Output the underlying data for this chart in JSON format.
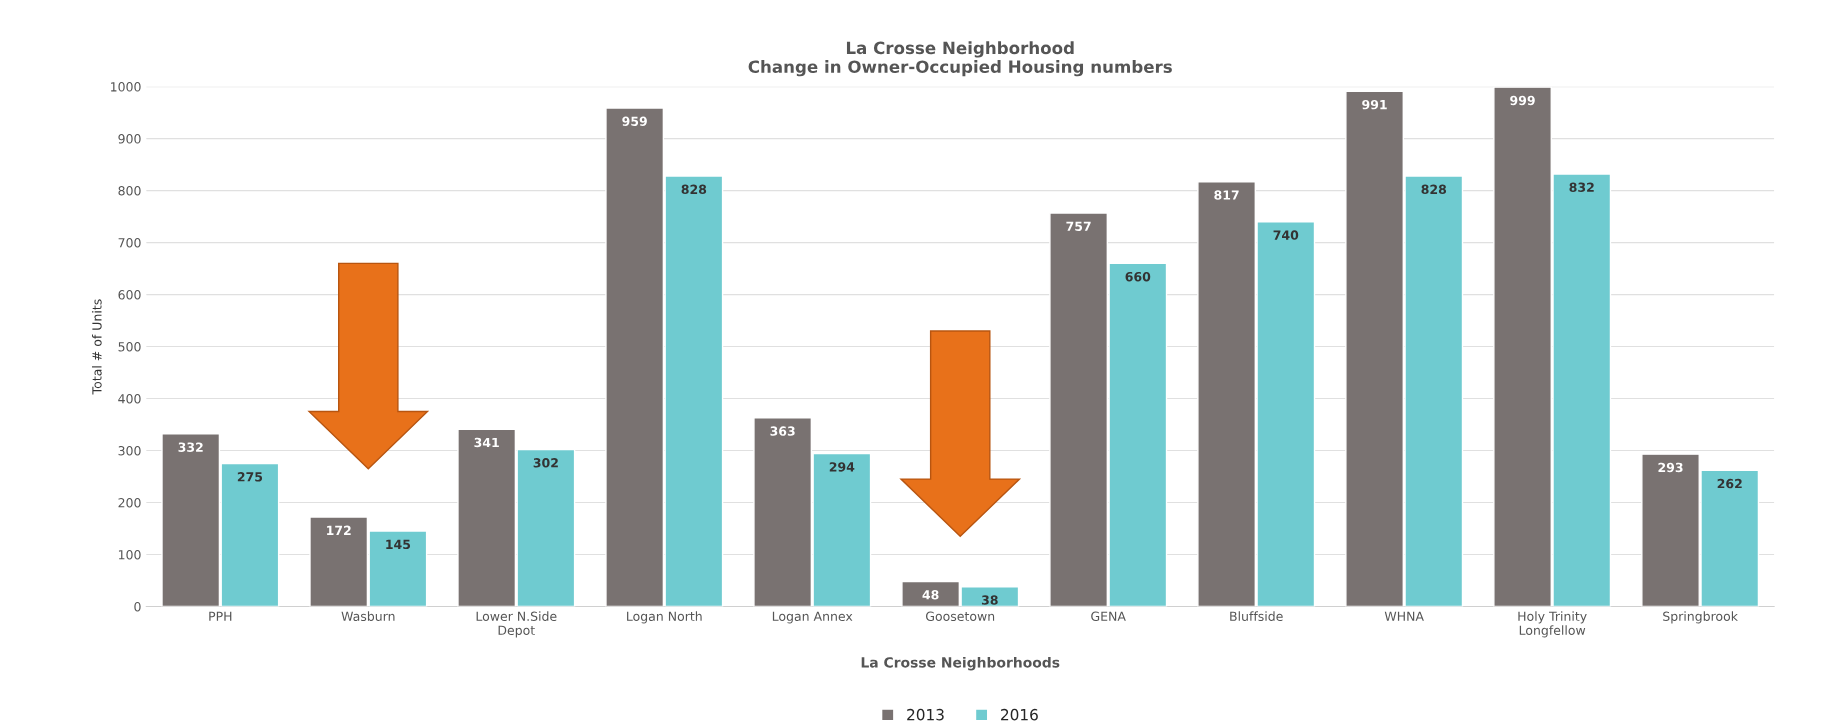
{
  "chart_data": {
    "type": "bar",
    "title": "La Crosse Neighborhood\nChange in Owner-Occupied Housing numbers",
    "xlabel": "La Crosse Neighborhoods",
    "ylabel": "Total # of Units",
    "categories": [
      "PPH",
      "Wasburn",
      "Lower N.Side\nDepot",
      "Logan North",
      "Logan Annex",
      "Goosetown",
      "GENA",
      "Bluffside",
      "WHNA",
      "Holy Trinity\nLongfellow",
      "Springbrook"
    ],
    "series": [
      {
        "name": "2013",
        "color": "#797271",
        "values": [
          332,
          172,
          341,
          959,
          363,
          48,
          757,
          817,
          991,
          999,
          293
        ]
      },
      {
        "name": "2016",
        "color": "#6fcbd0",
        "values": [
          275,
          145,
          302,
          828,
          294,
          38,
          660,
          740,
          828,
          832,
          262
        ]
      }
    ],
    "ylim": [
      0,
      1000
    ],
    "yticks": [
      0,
      100,
      200,
      300,
      400,
      500,
      600,
      700,
      800,
      900,
      1000
    ],
    "grid": "y",
    "legend": "bottom",
    "data_labels": true
  }
}
